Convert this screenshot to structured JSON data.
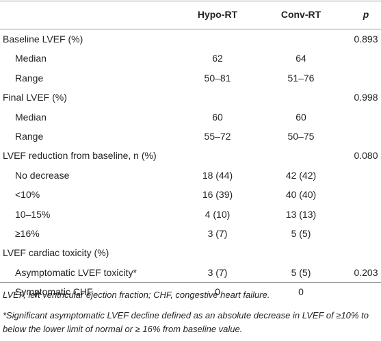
{
  "table": {
    "columns": [
      "Hypo-RT",
      "Conv-RT",
      "p"
    ],
    "groups": [
      {
        "label": "Baseline LVEF (%)",
        "p": "0.893",
        "rows": [
          {
            "label": "Median",
            "values": [
              "62",
              "64"
            ]
          },
          {
            "label": "Range",
            "values": [
              "50–81",
              "51–76"
            ]
          }
        ]
      },
      {
        "label": "Final LVEF (%)",
        "p": "0.998",
        "rows": [
          {
            "label": "Median",
            "values": [
              "60",
              "60"
            ]
          },
          {
            "label": "Range",
            "values": [
              "55–72",
              "50–75"
            ]
          }
        ]
      },
      {
        "label": "LVEF reduction from baseline, n (%)",
        "p": "0.080",
        "rows": [
          {
            "label": "No decrease",
            "values": [
              "18 (44)",
              "42 (42)"
            ]
          },
          {
            "label": "<10%",
            "values": [
              "16 (39)",
              "40 (40)"
            ]
          },
          {
            "label": "10–15%",
            "values": [
              "4 (10)",
              "13 (13)"
            ]
          },
          {
            "label": "≥16%",
            "values": [
              "3 (7)",
              "5 (5)"
            ]
          }
        ]
      },
      {
        "label": "LVEF cardiac toxicity (%)",
        "rows": [
          {
            "label": "Asymptomatic LVEF toxicity*",
            "values": [
              "3 (7)",
              "5 (5)"
            ],
            "p": "0.203"
          },
          {
            "label": "Symptomatic CHF",
            "values": [
              "0",
              "0"
            ]
          }
        ]
      }
    ]
  },
  "footnotes": [
    "LVEF, left ventricular ejection fraction; CHF, congestive heart failure.",
    "*Significant asymptomatic LVEF decline defined as an absolute decrease in LVEF of ≥10% to below the lower limit of normal or ≥ 16% from baseline value."
  ]
}
